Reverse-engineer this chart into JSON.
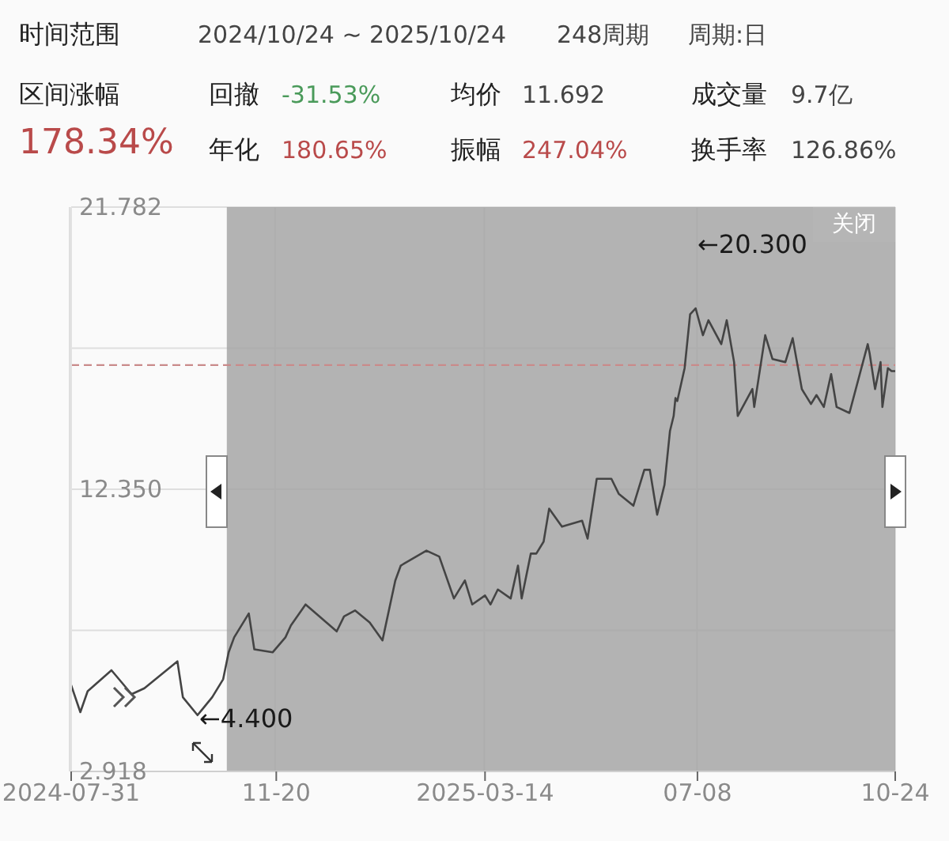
{
  "chart_data": {
    "type": "line",
    "annotations": [
      "时间范围",
      "2024/10/24 ~ 2025/10/24",
      "248周期",
      "周期:日",
      "区间涨幅",
      "178.34%",
      "回撤",
      "-31.53%",
      "年化",
      "180.65%",
      "均价",
      "11.692",
      "振幅",
      "247.04%",
      "成交量",
      "9.7亿",
      "换手率",
      "126.86%",
      "关闭",
      "←20.300",
      "←4.400"
    ],
    "x": [
      "2024-07-31",
      "2024-08-05",
      "2024-08-09",
      "2024-08-22",
      "2024-09-02",
      "2024-09-09",
      "2024-09-27",
      "2024-09-30",
      "2024-10-08",
      "2024-10-16",
      "2024-10-22",
      "2024-10-25",
      "2024-10-28",
      "2024-11-05",
      "2024-11-08",
      "2024-11-18",
      "2024-11-25",
      "2024-11-28",
      "2024-12-06",
      "2024-12-23",
      "2024-12-27",
      "2025-01-02",
      "2025-01-10",
      "2025-01-17",
      "2025-01-24",
      "2025-01-27",
      "2025-02-10",
      "2025-02-17",
      "2025-02-25",
      "2025-03-03",
      "2025-03-07",
      "2025-03-14",
      "2025-03-17",
      "2025-03-21",
      "2025-03-28",
      "2025-04-01",
      "2025-04-03",
      "2025-04-08",
      "2025-04-11",
      "2025-04-15",
      "2025-04-18",
      "2025-04-25",
      "2025-05-06",
      "2025-05-09",
      "2025-05-14",
      "2025-05-22",
      "2025-05-26",
      "2025-06-03",
      "2025-06-09",
      "2025-06-12",
      "2025-06-16",
      "2025-06-20",
      "2025-06-23",
      "2025-06-25",
      "2025-06-26",
      "2025-06-27",
      "2025-07-01",
      "2025-07-04",
      "2025-07-07",
      "2025-07-11",
      "2025-07-14",
      "2025-07-21",
      "2025-07-24",
      "2025-07-28",
      "2025-07-30",
      "2025-08-07",
      "2025-08-08",
      "2025-08-14",
      "2025-08-18",
      "2025-08-25",
      "2025-08-29",
      "2025-09-03",
      "2025-09-08",
      "2025-09-11",
      "2025-09-15",
      "2025-09-19",
      "2025-09-22",
      "2025-09-29",
      "2025-10-09",
      "2025-10-10",
      "2025-10-13",
      "2025-10-16",
      "2025-10-17",
      "2025-10-20",
      "2025-10-22",
      "2025-10-24"
    ],
    "series": [
      {
        "color": "#444444",
        "values": [
          5.8,
          4.9,
          5.6,
          6.3,
          5.5,
          5.7,
          6.6,
          5.4,
          4.8,
          5.4,
          6.0,
          6.9,
          7.4,
          8.2,
          7.0,
          6.9,
          7.4,
          7.8,
          8.5,
          7.6,
          8.1,
          8.3,
          7.9,
          7.3,
          9.3,
          9.8,
          10.3,
          10.1,
          8.7,
          9.3,
          8.5,
          8.8,
          8.5,
          9.0,
          8.7,
          9.8,
          8.7,
          10.2,
          10.2,
          10.6,
          11.7,
          11.1,
          11.3,
          10.7,
          12.7,
          12.7,
          12.2,
          11.8,
          13.0,
          13.0,
          11.5,
          12.5,
          14.3,
          14.8,
          15.4,
          15.3,
          16.4,
          18.2,
          18.4,
          17.5,
          18.0,
          17.2,
          18.0,
          16.6,
          14.8,
          15.7,
          15.1,
          17.5,
          16.7,
          16.6,
          17.4,
          15.7,
          15.2,
          15.5,
          15.1,
          16.2,
          15.1,
          14.9,
          17.2,
          16.9,
          15.7,
          16.6,
          15.1,
          16.4,
          16.3,
          16.3
        ]
      }
    ],
    "xlim": [
      "2024-07-31",
      "2025-10-24"
    ],
    "xticks": [
      {
        "value": "2024-07-31",
        "label": "2024-07-31"
      },
      {
        "value": "2024-11-20",
        "label": "11-20"
      },
      {
        "value": "2025-03-14",
        "label": "2025-03-14"
      },
      {
        "value": "2025-07-08",
        "label": "07-08"
      },
      {
        "value": "2025-10-24",
        "label": "10-24"
      }
    ],
    "ylim": [
      2.918,
      21.782
    ],
    "yticks": [
      21.782,
      {
        "value": 17.066,
        "label": null
      },
      {
        "value": 12.35,
        "label": "12.350"
      },
      {
        "value": 7.634,
        "label": null
      },
      2.918
    ],
    "grid": true,
    "marker": "none",
    "line_style": "solid",
    "ref_lines": [
      {
        "axis": "y",
        "value": 16.5,
        "color": "#c98a8a",
        "line_style": "dashed"
      }
    ],
    "bands": [
      {
        "axis": "x",
        "from": "2024-10-24",
        "to": "2025-10-24",
        "color": "#a6a6a6"
      }
    ]
  }
}
